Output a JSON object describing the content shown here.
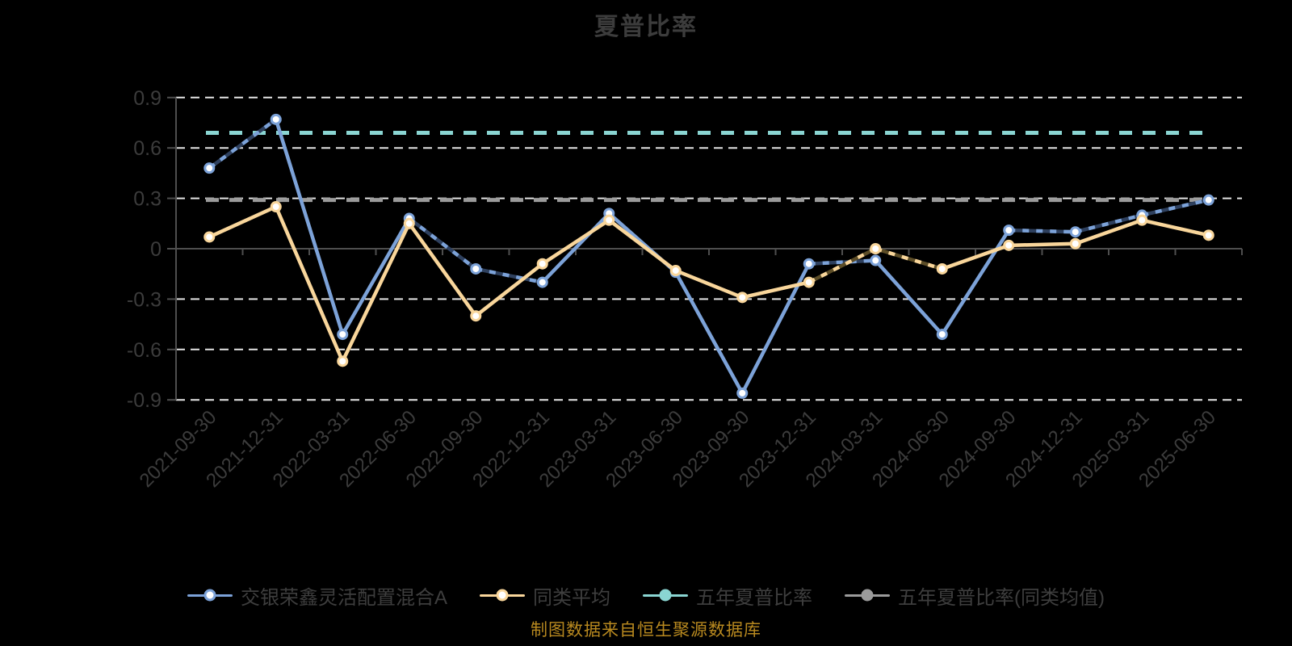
{
  "title": "夏普比率",
  "footer_note": "制图数据来自恒生聚源数据库",
  "colors": {
    "background": "#000000",
    "title_text": "#3C3C3C",
    "axis_text": "#3C3C3C",
    "legend_text": "#3E3E3E",
    "gridline": "#E4E4E4",
    "axis_line": "#4E4E4E",
    "fund_line": "#7CA2D8",
    "average_line": "#F9D69B",
    "five_year_fund_line": "#8AD5D2",
    "five_year_average_line": "#9B9B9B",
    "footer_note_text": "#B8891F",
    "marker_fill": "#FFFFFF"
  },
  "chart_data": {
    "type": "line",
    "title": "夏普比率",
    "xlabel": "",
    "ylabel": "",
    "ylim": [
      -0.9,
      0.9
    ],
    "y_ticks": [
      0.9,
      0.6,
      0.3,
      0,
      -0.3,
      -0.6,
      -0.9
    ],
    "grid": "horizontal-dashed",
    "legend_position": "bottom",
    "categories": [
      "2021-09-30",
      "2021-12-31",
      "2022-03-31",
      "2022-06-30",
      "2022-09-30",
      "2022-12-31",
      "2023-03-31",
      "2023-06-30",
      "2023-09-30",
      "2023-12-31",
      "2024-03-31",
      "2024-06-30",
      "2024-09-30",
      "2024-12-31",
      "2025-03-31",
      "2025-06-30"
    ],
    "series": [
      {
        "name": "交银荣鑫灵活配置混合A",
        "kind": "line",
        "color": "#7CA2D8",
        "marker": "circle-white",
        "values": [
          0.48,
          0.77,
          -0.51,
          0.18,
          -0.12,
          -0.2,
          0.21,
          -0.14,
          -0.86,
          -0.09,
          -0.07,
          -0.51,
          0.11,
          0.1,
          0.2,
          0.29
        ],
        "dashed_segments": [
          0,
          3,
          4,
          9,
          12,
          13,
          14
        ]
      },
      {
        "name": "同类平均",
        "kind": "line",
        "color": "#F9D69B",
        "marker": "circle-white",
        "values": [
          0.07,
          0.25,
          -0.67,
          0.15,
          -0.4,
          -0.09,
          0.17,
          -0.13,
          -0.29,
          -0.2,
          0.0,
          -0.12,
          0.02,
          0.03,
          0.17,
          0.08
        ],
        "dashed_segments": [
          9,
          10
        ]
      },
      {
        "name": "五年夏普比率",
        "kind": "hline",
        "color": "#8AD5D2",
        "value": 0.69
      },
      {
        "name": "五年夏普比率(同类均值)",
        "kind": "hline",
        "color": "#9B9B9B",
        "value": 0.29
      }
    ]
  }
}
